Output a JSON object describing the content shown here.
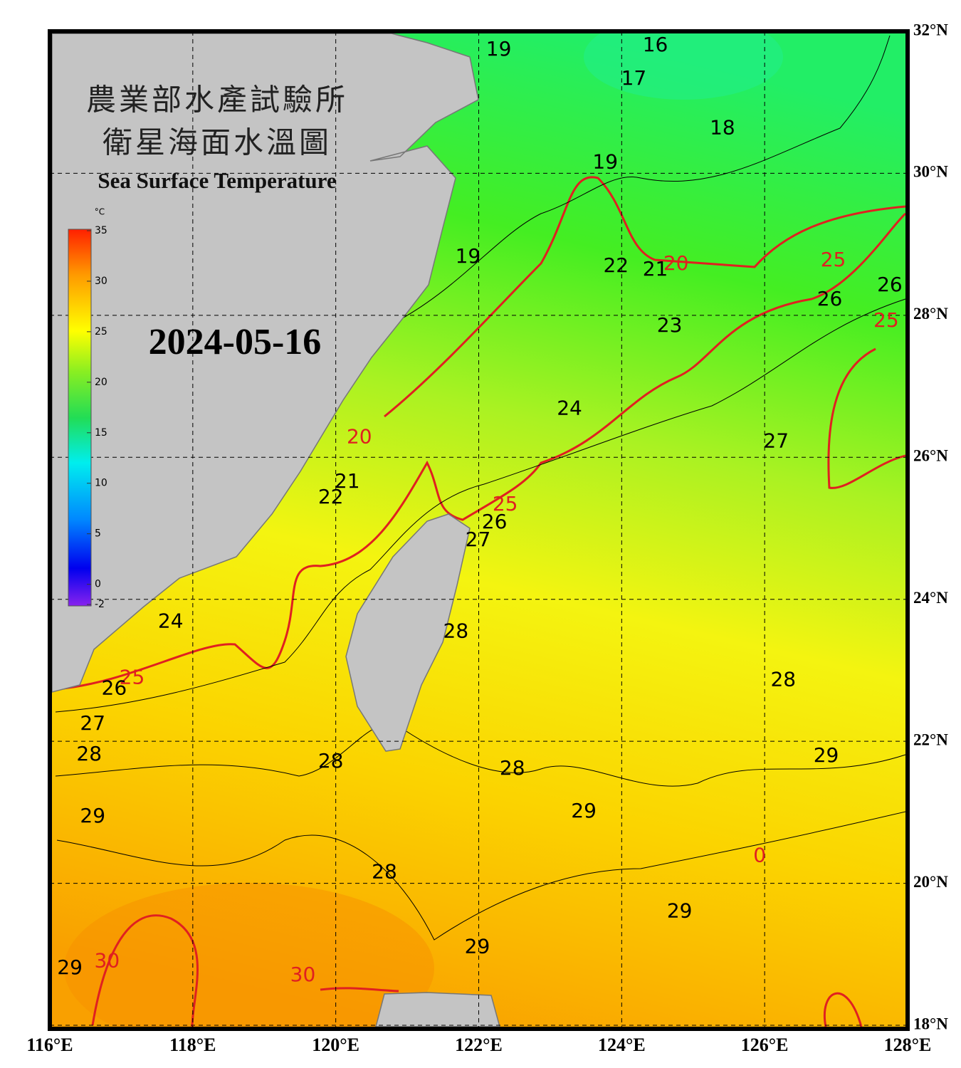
{
  "header": {
    "agency": "農業部水產試驗所",
    "title": "衛星海面水溫圖",
    "subtitle": "Sea Surface Temperature",
    "date": "2024-05-16"
  },
  "colorbar": {
    "unit": "°C",
    "range": [
      -2,
      35
    ],
    "ticks": [
      35,
      30,
      25,
      20,
      15,
      10,
      5,
      0,
      -2
    ]
  },
  "map": {
    "lon_range": [
      116,
      128
    ],
    "lat_range": [
      17.95,
      32
    ],
    "lon_ticks": [
      {
        "value": 116,
        "label": "116°E"
      },
      {
        "value": 118,
        "label": "118°E"
      },
      {
        "value": 120,
        "label": "120°E"
      },
      {
        "value": 122,
        "label": "122°E"
      },
      {
        "value": 124,
        "label": "124°E"
      },
      {
        "value": 126,
        "label": "126°E"
      },
      {
        "value": 128,
        "label": "128°E"
      }
    ],
    "lat_ticks": [
      {
        "value": 32,
        "label": "32°N"
      },
      {
        "value": 30,
        "label": "30°N"
      },
      {
        "value": 28,
        "label": "28°N"
      },
      {
        "value": 26,
        "label": "26°N"
      },
      {
        "value": 24,
        "label": "24°N"
      },
      {
        "value": 22,
        "label": "22°N"
      },
      {
        "value": 20,
        "label": "20°N"
      },
      {
        "value": 18,
        "label": "18°N"
      }
    ],
    "contour_labels": [
      {
        "label": "19",
        "lon": 122.28,
        "lat": 31.74,
        "color": "#000000"
      },
      {
        "label": "16",
        "lon": 124.47,
        "lat": 31.8,
        "color": "#000000"
      },
      {
        "label": "17",
        "lon": 124.17,
        "lat": 31.33,
        "color": "#000000"
      },
      {
        "label": "18",
        "lon": 125.41,
        "lat": 30.63,
        "color": "#000000"
      },
      {
        "label": "19",
        "lon": 123.77,
        "lat": 30.15,
        "color": "#000000"
      },
      {
        "label": "19",
        "lon": 121.85,
        "lat": 28.82,
        "color": "#000000"
      },
      {
        "label": "20",
        "lon": 124.76,
        "lat": 28.72,
        "color": "#e02020"
      },
      {
        "label": "22",
        "lon": 123.92,
        "lat": 28.69,
        "color": "#000000"
      },
      {
        "label": "21",
        "lon": 124.47,
        "lat": 28.64,
        "color": "#000000"
      },
      {
        "label": "25",
        "lon": 126.96,
        "lat": 28.77,
        "color": "#e02020"
      },
      {
        "label": "26",
        "lon": 127.75,
        "lat": 28.42,
        "color": "#000000"
      },
      {
        "label": "26",
        "lon": 126.91,
        "lat": 28.22,
        "color": "#000000"
      },
      {
        "label": "25",
        "lon": 127.7,
        "lat": 27.92,
        "color": "#e02020"
      },
      {
        "label": "23",
        "lon": 124.67,
        "lat": 27.85,
        "color": "#000000"
      },
      {
        "label": "24",
        "lon": 123.27,
        "lat": 26.68,
        "color": "#000000"
      },
      {
        "label": "27",
        "lon": 126.16,
        "lat": 26.22,
        "color": "#000000"
      },
      {
        "label": "20",
        "lon": 120.33,
        "lat": 26.28,
        "color": "#e02020"
      },
      {
        "label": "21",
        "lon": 120.16,
        "lat": 25.65,
        "color": "#000000"
      },
      {
        "label": "22",
        "lon": 119.93,
        "lat": 25.43,
        "color": "#000000"
      },
      {
        "label": "25",
        "lon": 122.37,
        "lat": 25.33,
        "color": "#e02020"
      },
      {
        "label": "26",
        "lon": 122.22,
        "lat": 25.08,
        "color": "#000000"
      },
      {
        "label": "27",
        "lon": 121.99,
        "lat": 24.83,
        "color": "#000000"
      },
      {
        "label": "24",
        "lon": 117.69,
        "lat": 23.68,
        "color": "#000000"
      },
      {
        "label": "25",
        "lon": 117.15,
        "lat": 22.89,
        "color": "#e02020"
      },
      {
        "label": "26",
        "lon": 116.9,
        "lat": 22.74,
        "color": "#000000"
      },
      {
        "label": "27",
        "lon": 116.6,
        "lat": 22.24,
        "color": "#000000"
      },
      {
        "label": "28",
        "lon": 116.55,
        "lat": 21.81,
        "color": "#000000"
      },
      {
        "label": "28",
        "lon": 121.68,
        "lat": 23.54,
        "color": "#000000"
      },
      {
        "label": "28",
        "lon": 126.26,
        "lat": 22.86,
        "color": "#000000"
      },
      {
        "label": "28",
        "lon": 119.93,
        "lat": 21.71,
        "color": "#000000"
      },
      {
        "label": "28",
        "lon": 122.47,
        "lat": 21.61,
        "color": "#000000"
      },
      {
        "label": "29",
        "lon": 126.86,
        "lat": 21.79,
        "color": "#000000"
      },
      {
        "label": "29",
        "lon": 116.6,
        "lat": 20.94,
        "color": "#000000"
      },
      {
        "label": "29",
        "lon": 123.47,
        "lat": 21.01,
        "color": "#000000"
      },
      {
        "label": "0",
        "lon": 125.93,
        "lat": 20.38,
        "color": "#e02020"
      },
      {
        "label": "28",
        "lon": 120.68,
        "lat": 20.15,
        "color": "#000000"
      },
      {
        "label": "29",
        "lon": 124.81,
        "lat": 19.6,
        "color": "#000000"
      },
      {
        "label": "29",
        "lon": 121.98,
        "lat": 19.1,
        "color": "#000000"
      },
      {
        "label": "29",
        "lon": 116.28,
        "lat": 18.8,
        "color": "#000000"
      },
      {
        "label": "30",
        "lon": 116.8,
        "lat": 18.9,
        "color": "#e02020"
      },
      {
        "label": "30",
        "lon": 119.54,
        "lat": 18.7,
        "color": "#e02020"
      }
    ]
  }
}
